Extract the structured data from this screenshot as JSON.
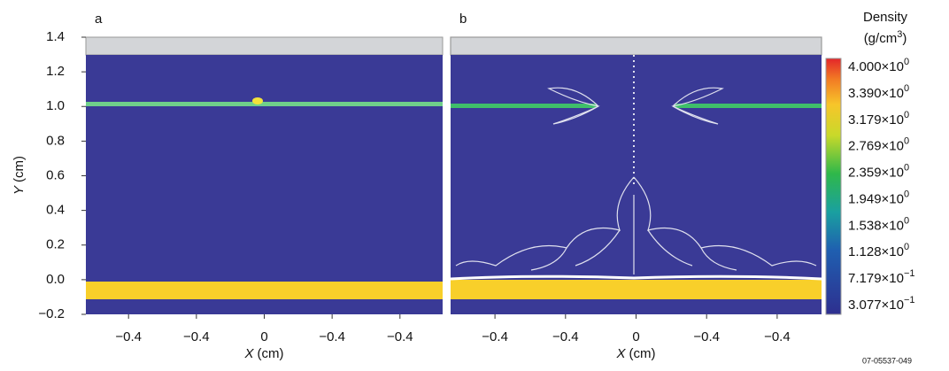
{
  "panels": [
    {
      "label": "a",
      "x_axis_variable": "X",
      "x_axis_unit": "(cm)",
      "x_tick_labels": [
        "−0.4",
        "−0.4",
        "0",
        "−0.4",
        "−0.4"
      ]
    },
    {
      "label": "b",
      "x_axis_variable": "X",
      "x_axis_unit": "(cm)",
      "x_tick_labels": [
        "−0.4",
        "−0.4",
        "0",
        "−0.4",
        "−0.4"
      ]
    }
  ],
  "y_axis": {
    "variable": "Y",
    "unit": "(cm)",
    "tick_labels": [
      "1.4",
      "1.2",
      "1.0",
      "0.8",
      "0.6",
      "0.4",
      "0.2",
      "0.0",
      "−0.2"
    ]
  },
  "colorbar": {
    "title": "Density",
    "unit_prefix": "(g/cm",
    "unit_exponent": "3",
    "unit_suffix": ")",
    "tick_labels": [
      {
        "mantissa": "4.000×10",
        "exponent": "0"
      },
      {
        "mantissa": "3.390×10",
        "exponent": "0"
      },
      {
        "mantissa": "3.179×10",
        "exponent": "0"
      },
      {
        "mantissa": "2.769×10",
        "exponent": "0"
      },
      {
        "mantissa": "2.359×10",
        "exponent": "0"
      },
      {
        "mantissa": "1.949×10",
        "exponent": "0"
      },
      {
        "mantissa": "1.538×10",
        "exponent": "0"
      },
      {
        "mantissa": "1.128×10",
        "exponent": "0"
      },
      {
        "mantissa": "7.179×10",
        "exponent": "−1"
      },
      {
        "mantissa": "3.077×10",
        "exponent": "−1"
      }
    ]
  },
  "figure_id": "07-05537-049"
}
